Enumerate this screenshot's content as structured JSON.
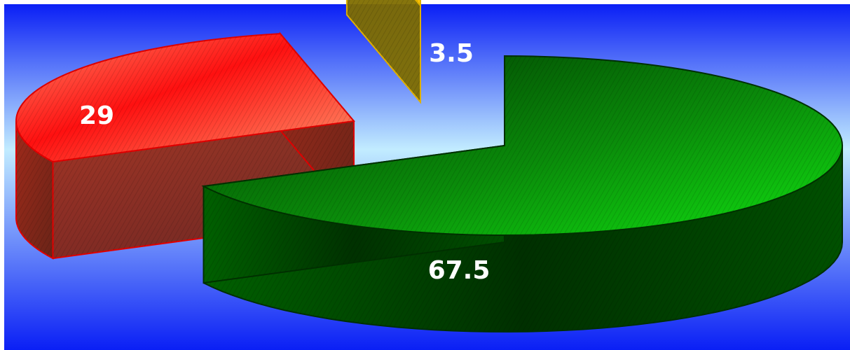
{
  "chart_data": {
    "type": "pie",
    "style": "3d-exploded",
    "values": [
      67.5,
      29,
      3.5
    ],
    "data_labels": [
      "67.5",
      "29",
      "3.5"
    ],
    "colors": [
      "#00c800",
      "#ff2a1a",
      "#ffd500"
    ],
    "legend": "none",
    "background": "blue-gradient"
  }
}
